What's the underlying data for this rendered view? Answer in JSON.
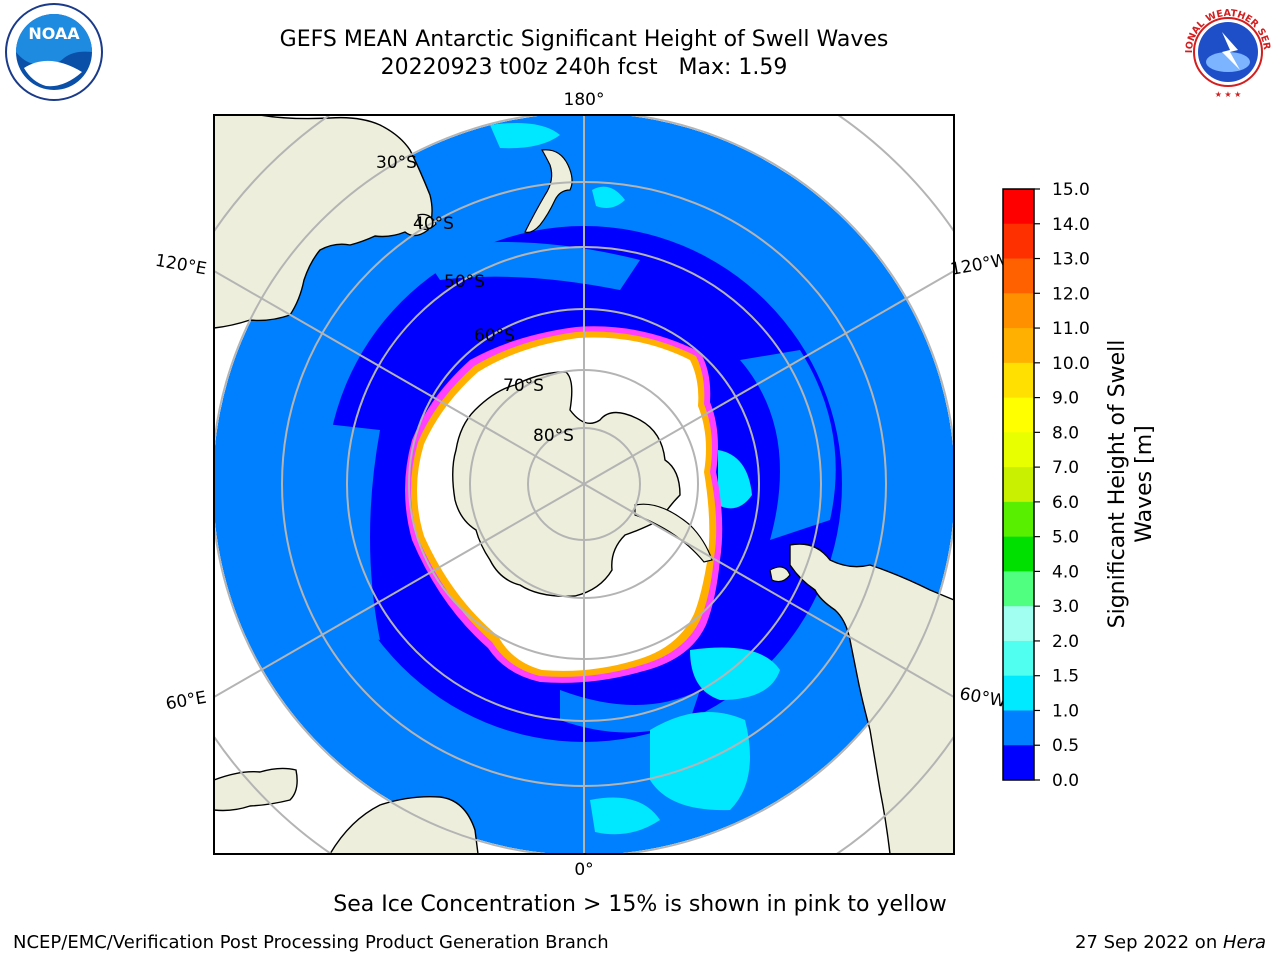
{
  "header": {
    "title_line1": "GEFS MEAN Antarctic Significant Height of Swell Waves",
    "title_line2": "20220923 t00z 240h fcst   Max: 1.59"
  },
  "logos": {
    "noaa": {
      "icon": "noaa-logo",
      "text": "NOAA"
    },
    "nws": {
      "icon": "nws-logo",
      "text": "NATIONAL WEATHER SERVICE"
    }
  },
  "map": {
    "projection": "south-polar-stereographic",
    "longitude_labels": {
      "top": "180°",
      "left_upper": "120°E",
      "right_upper": "120°W",
      "left_lower": "60°E",
      "right_lower": "60°W",
      "bottom": "0°"
    },
    "latitude_labels": [
      "30°S",
      "40°S",
      "50°S",
      "60°S",
      "70°S",
      "80°S"
    ],
    "colors": {
      "land": "#eeeedc",
      "ocean_dark": "#0000ff",
      "ocean_mid": "#0080ff",
      "ocean_cyan": "#00e8ff",
      "ice": "#ffffff",
      "ice_edge_pink": "#ff40ff",
      "ice_edge_orange": "#ffb000",
      "grid": "#b4b4b4"
    }
  },
  "colorbar": {
    "label": "Significant Height of Swell Waves [m]",
    "label_line1": "Significant Height of Swell",
    "label_line2": "Waves [m]",
    "ticks": [
      "15.0",
      "14.0",
      "13.0",
      "12.0",
      "11.0",
      "10.0",
      "9.0",
      "8.0",
      "7.0",
      "6.0",
      "5.0",
      "4.0",
      "3.0",
      "2.0",
      "1.5",
      "1.0",
      "0.5",
      "0.0"
    ],
    "colors_top_to_bottom": [
      "#ff0000",
      "#ff3000",
      "#ff6000",
      "#ff9000",
      "#ffb000",
      "#ffe000",
      "#ffff00",
      "#e8ff00",
      "#c8f000",
      "#58f000",
      "#00e000",
      "#50ff80",
      "#a0fff0",
      "#50fff0",
      "#00eaff",
      "#0080ff",
      "#0000ff"
    ]
  },
  "footnote": "Sea Ice Concentration > 15% is shown in pink to yellow",
  "footer": {
    "left": "NCEP/EMC/Verification Post Processing Product Generation Branch",
    "right_prefix": "27 Sep 2022 on ",
    "right_italic": "Hera"
  }
}
